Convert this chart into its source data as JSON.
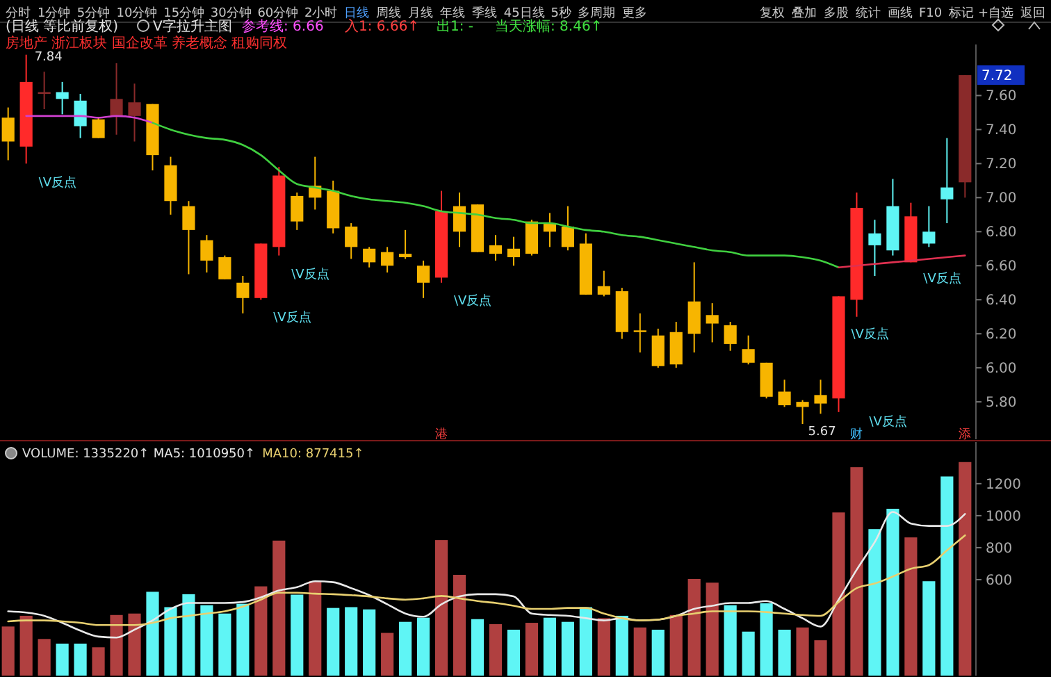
{
  "chart_data": [
    {
      "type": "other",
      "annotations": [
        "分时",
        "1分钟",
        "5分钟",
        "10分钟",
        "15分钟",
        "30分钟",
        "60分钟",
        "2小时",
        "日线",
        "周线",
        "月线",
        "年线",
        "季线",
        "45日线",
        "5秒",
        "多周期",
        "更多",
        "复权",
        "叠加",
        "多股",
        "统计",
        "画线",
        "F10",
        "标记",
        "+自选",
        "返回"
      ]
    },
    {
      "type": "candlestick",
      "title": "(日线 等比前复权)",
      "subtitle": "V字拉升主图",
      "categories": [
        null,
        null,
        null,
        null,
        null,
        null,
        null,
        null,
        null,
        null,
        null,
        null,
        null,
        null,
        null,
        null,
        null,
        null,
        null,
        null,
        null,
        null,
        null,
        null,
        null,
        null,
        null,
        null,
        null,
        null,
        null,
        null,
        null,
        null,
        null,
        null,
        null,
        null,
        null,
        null,
        null,
        null,
        null,
        null,
        null,
        null,
        null,
        null,
        null,
        null,
        null,
        null,
        null,
        null
      ],
      "ohlc": [
        [
          7.47,
          7.53,
          7.22,
          7.33
        ],
        [
          7.3,
          7.84,
          7.2,
          7.68
        ],
        [
          7.61,
          7.74,
          7.52,
          7.62
        ],
        [
          7.62,
          7.68,
          7.49,
          7.58
        ],
        [
          7.57,
          7.61,
          7.35,
          7.42
        ],
        [
          7.46,
          7.47,
          7.35,
          7.35
        ],
        [
          7.48,
          7.79,
          7.37,
          7.58
        ],
        [
          7.48,
          7.67,
          7.33,
          7.56
        ],
        [
          7.55,
          7.55,
          7.16,
          7.25
        ],
        [
          7.19,
          7.24,
          6.9,
          6.98
        ],
        [
          6.95,
          6.98,
          6.55,
          6.81
        ],
        [
          6.75,
          6.78,
          6.56,
          6.63
        ],
        [
          6.65,
          6.66,
          6.52,
          6.52
        ],
        [
          6.5,
          6.54,
          6.32,
          6.41
        ],
        [
          6.41,
          6.73,
          6.4,
          6.73
        ],
        [
          6.71,
          7.18,
          6.66,
          7.13
        ],
        [
          7.01,
          7.03,
          6.81,
          6.86
        ],
        [
          7.07,
          7.24,
          6.93,
          7.0
        ],
        [
          7.04,
          7.1,
          6.79,
          6.82
        ],
        [
          6.83,
          6.85,
          6.64,
          6.71
        ],
        [
          6.7,
          6.71,
          6.59,
          6.62
        ],
        [
          6.68,
          6.71,
          6.56,
          6.6
        ],
        [
          6.67,
          6.81,
          6.64,
          6.65
        ],
        [
          6.6,
          6.63,
          6.41,
          6.5
        ],
        [
          6.53,
          7.04,
          6.5,
          6.92
        ],
        [
          6.95,
          7.03,
          6.71,
          6.8
        ],
        [
          6.96,
          6.96,
          6.68,
          6.68
        ],
        [
          6.72,
          6.78,
          6.63,
          6.67
        ],
        [
          6.7,
          6.77,
          6.6,
          6.65
        ],
        [
          6.86,
          6.87,
          6.66,
          6.67
        ],
        [
          6.85,
          6.91,
          6.71,
          6.8
        ],
        [
          6.83,
          6.95,
          6.69,
          6.71
        ],
        [
          6.73,
          6.79,
          6.43,
          6.43
        ],
        [
          6.48,
          6.57,
          6.42,
          6.43
        ],
        [
          6.45,
          6.47,
          6.17,
          6.21
        ],
        [
          6.22,
          6.32,
          6.09,
          6.21
        ],
        [
          6.19,
          6.23,
          6.0,
          6.01
        ],
        [
          6.21,
          6.27,
          6.0,
          6.02
        ],
        [
          6.39,
          6.62,
          6.09,
          6.2
        ],
        [
          6.31,
          6.38,
          6.15,
          6.26
        ],
        [
          6.25,
          6.27,
          6.1,
          6.14
        ],
        [
          6.11,
          6.19,
          6.02,
          6.03
        ],
        [
          6.03,
          6.03,
          5.82,
          5.83
        ],
        [
          5.86,
          5.93,
          5.77,
          5.78
        ],
        [
          5.8,
          5.81,
          5.67,
          5.77
        ],
        [
          5.84,
          5.93,
          5.73,
          5.79
        ],
        [
          5.82,
          6.42,
          5.74,
          6.42
        ],
        [
          6.4,
          7.03,
          6.3,
          6.94
        ],
        [
          6.79,
          6.87,
          6.54,
          6.72
        ],
        [
          6.95,
          7.11,
          6.66,
          6.69
        ],
        [
          6.62,
          6.97,
          6.62,
          6.89
        ],
        [
          6.8,
          6.95,
          6.71,
          6.73
        ],
        [
          7.06,
          7.35,
          6.85,
          6.99
        ],
        [
          7.09,
          7.72,
          7.0,
          7.72
        ]
      ],
      "colors": [
        "#f7b500",
        "#ff2a2a",
        "#8a2a2a",
        "#5ff5f5",
        "#5ff5f5",
        "#f7b500",
        "#8a2a2a",
        "#8a2a2a",
        "#f7b500",
        "#f7b500",
        "#f7b500",
        "#f7b500",
        "#f7b500",
        "#f7b500",
        "#ff2a2a",
        "#ff2a2a",
        "#f7b500",
        "#f7b500",
        "#f7b500",
        "#f7b500",
        "#f7b500",
        "#f7b500",
        "#f7b500",
        "#f7b500",
        "#ff2a2a",
        "#f7b500",
        "#f7b500",
        "#f7b500",
        "#f7b500",
        "#f7b500",
        "#f7b500",
        "#f7b500",
        "#f7b500",
        "#f7b500",
        "#f7b500",
        "#f7b500",
        "#f7b500",
        "#f7b500",
        "#f7b500",
        "#f7b500",
        "#f7b500",
        "#f7b500",
        "#f7b500",
        "#f7b500",
        "#f7b500",
        "#f7b500",
        "#ff2a2a",
        "#ff2a2a",
        "#5ff5f5",
        "#5ff5f5",
        "#ff2a2a",
        "#5ff5f5",
        "#5ff5f5",
        "#8a2a2a"
      ],
      "series": [
        {
          "type": "line",
          "color": "#d040d0",
          "values": [
            null,
            7.48,
            7.48,
            7.48,
            7.48,
            7.47,
            7.48,
            7.47,
            7.44,
            null,
            null,
            null,
            null,
            null,
            null,
            null,
            null,
            null,
            null,
            null,
            null,
            null,
            null,
            null,
            null,
            null,
            null,
            null,
            null,
            null,
            null,
            null,
            null,
            null,
            null,
            null,
            null,
            null,
            null,
            null,
            null,
            null,
            null,
            null,
            null,
            null,
            null,
            null,
            null,
            null,
            null,
            null,
            null,
            null
          ]
        },
        {
          "type": "line",
          "color": "#40d040",
          "values": [
            null,
            null,
            null,
            null,
            null,
            null,
            null,
            null,
            7.44,
            7.4,
            7.37,
            7.35,
            7.34,
            7.31,
            7.25,
            7.16,
            7.08,
            7.06,
            7.04,
            7.01,
            6.99,
            6.98,
            6.97,
            6.95,
            6.92,
            6.91,
            6.9,
            6.88,
            6.87,
            6.85,
            6.85,
            6.83,
            6.81,
            6.8,
            6.78,
            6.77,
            6.75,
            6.73,
            6.71,
            6.69,
            6.68,
            6.66,
            6.66,
            6.66,
            6.65,
            6.63,
            6.59,
            null,
            null,
            null,
            null,
            null,
            null,
            null
          ]
        },
        {
          "type": "line",
          "color": "#e03050",
          "values": [
            null,
            null,
            null,
            null,
            null,
            null,
            null,
            null,
            null,
            null,
            null,
            null,
            null,
            null,
            null,
            null,
            null,
            null,
            null,
            null,
            null,
            null,
            null,
            null,
            null,
            null,
            null,
            null,
            null,
            null,
            null,
            null,
            null,
            null,
            null,
            null,
            null,
            null,
            null,
            null,
            null,
            null,
            null,
            null,
            null,
            null,
            6.59,
            6.6,
            6.61,
            6.62,
            6.63,
            6.64,
            6.65,
            6.66
          ]
        }
      ],
      "ylim": [
        5.58,
        7.9
      ],
      "yticks": [
        {
          "value": 5.8,
          "label": "5.80"
        },
        {
          "value": 6.0,
          "label": "6.00"
        },
        {
          "value": 6.2,
          "label": "6.20"
        },
        {
          "value": 6.4,
          "label": "6.40"
        },
        {
          "value": 6.6,
          "label": "6.60"
        },
        {
          "value": 6.8,
          "label": "6.80"
        },
        {
          "value": 7.0,
          "label": "7.00"
        },
        {
          "value": 7.2,
          "label": "7.20"
        },
        {
          "value": 7.4,
          "label": "7.40"
        },
        {
          "value": 7.6,
          "label": "7.60"
        }
      ],
      "annotations": [
        "参考线: 6.66",
        "入1: 6.66↑",
        "出1: -",
        "当天涨幅: 8.46↑",
        "房地产 浙江板块 国企改革 养老概念 租购同权",
        "7.84",
        "5.67",
        "7.72",
        "\\V反点",
        "\\V反点",
        "\\V反点",
        "\\V反点",
        "\\V反点",
        "\\V反点",
        "\\V反点",
        "港",
        "财",
        "添"
      ]
    },
    {
      "type": "bar",
      "categories": [
        null,
        null,
        null,
        null,
        null,
        null,
        null,
        null,
        null,
        null,
        null,
        null,
        null,
        null,
        null,
        null,
        null,
        null,
        null,
        null,
        null,
        null,
        null,
        null,
        null,
        null,
        null,
        null,
        null,
        null,
        null,
        null,
        null,
        null,
        null,
        null,
        null,
        null,
        null,
        null,
        null,
        null,
        null,
        null,
        null,
        null,
        null,
        null,
        null,
        null,
        null,
        null,
        null,
        null
      ],
      "series": [
        {
          "type": "bar",
          "colors": [
            "#b04040",
            "#b04040",
            "#b04040",
            "#5ff5f5",
            "#5ff5f5",
            "#b04040",
            "#b04040",
            "#b04040",
            "#5ff5f5",
            "#5ff5f5",
            "#5ff5f5",
            "#5ff5f5",
            "#5ff5f5",
            "#5ff5f5",
            "#b04040",
            "#b04040",
            "#5ff5f5",
            "#b04040",
            "#5ff5f5",
            "#5ff5f5",
            "#5ff5f5",
            "#b04040",
            "#5ff5f5",
            "#5ff5f5",
            "#b04040",
            "#b04040",
            "#5ff5f5",
            "#b04040",
            "#5ff5f5",
            "#b04040",
            "#5ff5f5",
            "#5ff5f5",
            "#5ff5f5",
            "#b04040",
            "#5ff5f5",
            "#b04040",
            "#5ff5f5",
            "#b04040",
            "#b04040",
            "#b04040",
            "#5ff5f5",
            "#5ff5f5",
            "#5ff5f5",
            "#5ff5f5",
            "#b04040",
            "#b04040",
            "#b04040",
            "#b04040",
            "#5ff5f5",
            "#5ff5f5",
            "#b04040",
            "#5ff5f5",
            "#5ff5f5",
            "#b04040"
          ],
          "values": [
            307,
            374,
            229,
            200,
            200,
            177,
            379,
            388,
            524,
            428,
            509,
            440,
            388,
            449,
            558,
            844,
            506,
            590,
            423,
            428,
            414,
            267,
            336,
            362,
            847,
            630,
            353,
            322,
            287,
            330,
            362,
            336,
            428,
            359,
            374,
            301,
            287,
            379,
            604,
            581,
            440,
            275,
            452,
            287,
            301,
            221,
            1020,
            1303,
            916,
            1043,
            864,
            590,
            1245,
            1335
          ]
        },
        {
          "type": "line",
          "color": "#e8e8e8",
          "values": [
            402,
            394,
            374,
            330,
            281,
            244,
            238,
            287,
            345,
            417,
            454,
            454,
            454,
            460,
            489,
            532,
            553,
            590,
            584,
            547,
            503,
            446,
            388,
            368,
            446,
            495,
            509,
            509,
            495,
            388,
            379,
            374,
            359,
            345,
            359,
            345,
            350,
            374,
            417,
            437,
            454,
            454,
            466,
            417,
            359,
            307,
            475,
            662,
            835,
            1023,
            951,
            936,
            936,
            1011
          ]
        },
        {
          "type": "line",
          "color": "#e8d070",
          "values": [
            339,
            345,
            345,
            339,
            330,
            316,
            316,
            316,
            330,
            359,
            374,
            388,
            402,
            431,
            475,
            518,
            518,
            512,
            509,
            503,
            495,
            483,
            475,
            483,
            498,
            483,
            466,
            454,
            437,
            417,
            417,
            423,
            423,
            388,
            359,
            345,
            350,
            374,
            388,
            402,
            402,
            402,
            397,
            388,
            379,
            374,
            460,
            547,
            576,
            619,
            668,
            691,
            783,
            877
          ]
        }
      ],
      "ylim": [
        0,
        1460
      ],
      "yticks": [
        600,
        800,
        1000,
        1200
      ],
      "annotations": [
        "VOLUME: 1335220↑",
        "MA5: 1010950↑",
        "MA10: 877415↑"
      ]
    }
  ]
}
